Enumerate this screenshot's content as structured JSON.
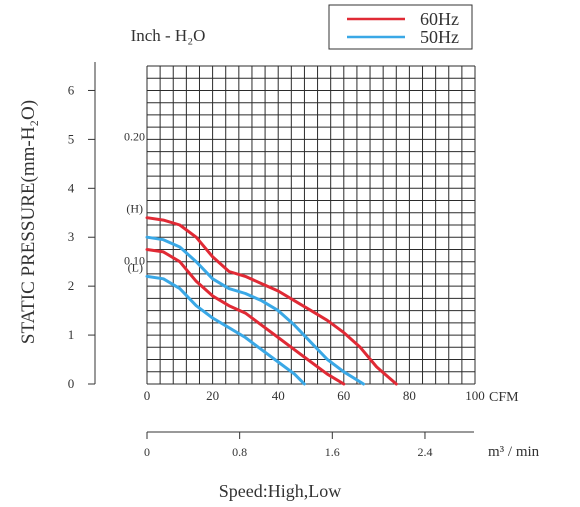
{
  "chart_data": {
    "type": "line",
    "title": "",
    "unit_label": "Inch - H₂O",
    "ylabel": "STATIC PRESSURE(mm-H₂O)",
    "xlabel": "CFM",
    "x2label": "m³ / min",
    "caption": "Speed:High,Low",
    "xlim": [
      0,
      100
    ],
    "ylim": [
      0,
      6.5
    ],
    "x_ticks": [
      "0",
      "20",
      "40",
      "60",
      "80",
      "100"
    ],
    "x_tick_values": [
      0,
      20,
      40,
      60,
      80,
      100
    ],
    "y_ticks": [
      "0",
      "1",
      "2",
      "3",
      "4",
      "5",
      "6"
    ],
    "y_tick_values": [
      0,
      1,
      2,
      3,
      4,
      5,
      6
    ],
    "inch_ticks": [
      {
        "label": "0.20",
        "value": 5.08
      },
      {
        "label": "0.10",
        "value": 2.54
      }
    ],
    "x2_ticks": [
      {
        "label": "0",
        "value": 0
      },
      {
        "label": "0.8",
        "value": 0.8
      },
      {
        "label": "1.6",
        "value": 1.6
      },
      {
        "label": "2.4",
        "value": 2.4
      }
    ],
    "x2_per_cfm": 0.02832,
    "speed_marks": [
      {
        "label": "(H)",
        "value": 3.4
      },
      {
        "label": "(L)",
        "value": 2.2
      }
    ],
    "grid": true,
    "legend_position": "top-right",
    "series": [
      {
        "name": "60Hz",
        "color": "#e02a35",
        "speed": "High",
        "points": [
          [
            0,
            3.4
          ],
          [
            5,
            3.35
          ],
          [
            10,
            3.25
          ],
          [
            15,
            3.0
          ],
          [
            20,
            2.6
          ],
          [
            25,
            2.3
          ],
          [
            30,
            2.2
          ],
          [
            35,
            2.05
          ],
          [
            40,
            1.9
          ],
          [
            45,
            1.7
          ],
          [
            50,
            1.5
          ],
          [
            55,
            1.3
          ],
          [
            60,
            1.05
          ],
          [
            65,
            0.75
          ],
          [
            70,
            0.35
          ],
          [
            76,
            0
          ]
        ]
      },
      {
        "name": "60Hz",
        "color": "#e02a35",
        "speed": "Low",
        "points": [
          [
            0,
            2.75
          ],
          [
            5,
            2.7
          ],
          [
            10,
            2.5
          ],
          [
            15,
            2.1
          ],
          [
            20,
            1.8
          ],
          [
            25,
            1.6
          ],
          [
            30,
            1.45
          ],
          [
            35,
            1.2
          ],
          [
            40,
            0.95
          ],
          [
            45,
            0.7
          ],
          [
            50,
            0.45
          ],
          [
            55,
            0.2
          ],
          [
            60,
            0
          ]
        ]
      },
      {
        "name": "50Hz",
        "color": "#3aa8e6",
        "speed": "High",
        "points": [
          [
            0,
            3.0
          ],
          [
            5,
            2.95
          ],
          [
            10,
            2.8
          ],
          [
            15,
            2.5
          ],
          [
            20,
            2.15
          ],
          [
            25,
            1.95
          ],
          [
            30,
            1.85
          ],
          [
            35,
            1.7
          ],
          [
            40,
            1.5
          ],
          [
            45,
            1.2
          ],
          [
            50,
            0.85
          ],
          [
            55,
            0.5
          ],
          [
            60,
            0.25
          ],
          [
            66,
            0
          ]
        ]
      },
      {
        "name": "50Hz",
        "color": "#3aa8e6",
        "speed": "Low",
        "points": [
          [
            0,
            2.2
          ],
          [
            5,
            2.15
          ],
          [
            10,
            1.95
          ],
          [
            15,
            1.6
          ],
          [
            20,
            1.35
          ],
          [
            25,
            1.15
          ],
          [
            30,
            0.95
          ],
          [
            35,
            0.7
          ],
          [
            40,
            0.45
          ],
          [
            45,
            0.2
          ],
          [
            48,
            0
          ]
        ]
      }
    ]
  }
}
